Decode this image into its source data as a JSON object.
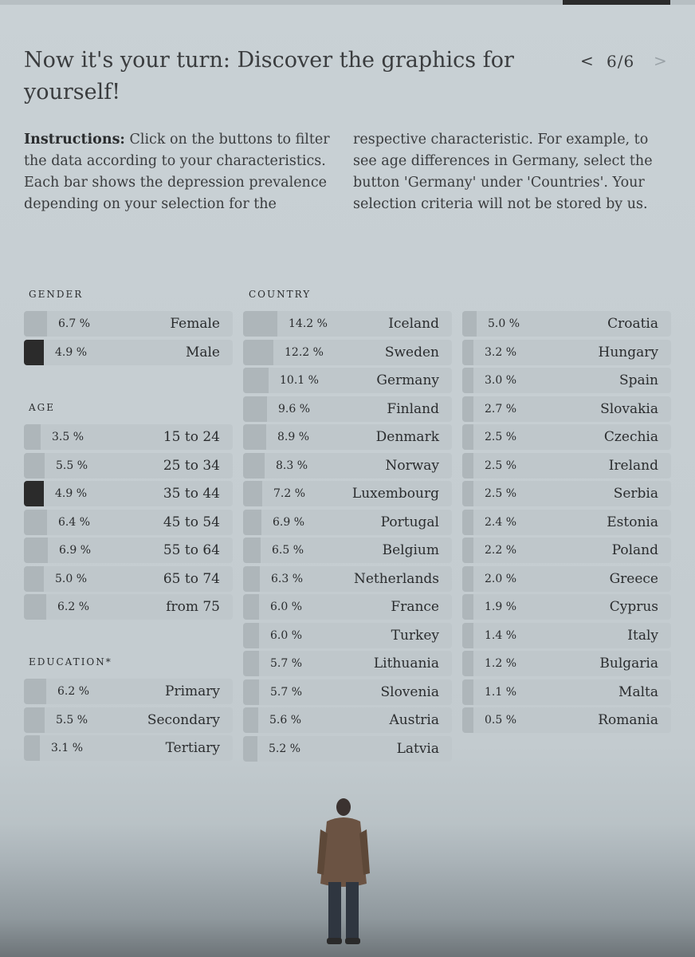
{
  "title": "Now it's your turn: Discover the graphics for yourself!",
  "pager": {
    "prev_icon": "chevron-left-icon",
    "label": "6/6",
    "next_icon": "chevron-right-icon"
  },
  "instructions": {
    "bold": "Instructions:",
    "text": " Click on the buttons to filter the data according to your characteristics. Each bar shows the depression prevalence depend­ing on your selection for the respective char­acteristic. For example, to see age differences in Germany, select the button 'Germany' un­der 'Countries'. Your selection criteria will not be stored by us."
  },
  "sections": {
    "gender": {
      "label": "GENDER",
      "items": [
        {
          "label": "Female",
          "value": "6.7 %",
          "selected": false
        },
        {
          "label": "Male",
          "value": "4.9 %",
          "selected": true
        }
      ]
    },
    "age": {
      "label": "AGE",
      "items": [
        {
          "label": "15 to 24",
          "value": "3.5 %",
          "selected": false
        },
        {
          "label": "25 to 34",
          "value": "5.5 %",
          "selected": false
        },
        {
          "label": "35 to 44",
          "value": "4.9 %",
          "selected": true
        },
        {
          "label": "45 to 54",
          "value": "6.4 %",
          "selected": false
        },
        {
          "label": "55 to 64",
          "value": "6.9 %",
          "selected": false
        },
        {
          "label": "65 to 74",
          "value": "5.0 %",
          "selected": false
        },
        {
          "label": "from 75",
          "value": "6.2 %",
          "selected": false
        }
      ]
    },
    "education": {
      "label": "EDUCATION*",
      "items": [
        {
          "label": "Primary",
          "value": "6.2 %",
          "selected": false
        },
        {
          "label": "Secondary",
          "value": "5.5 %",
          "selected": false
        },
        {
          "label": "Tertiary",
          "value": "3.1 %",
          "selected": false
        }
      ]
    },
    "country": {
      "label": "COUNTRY",
      "items": [
        {
          "label": "Iceland",
          "value": "14.2 %"
        },
        {
          "label": "Sweden",
          "value": "12.2 %"
        },
        {
          "label": "Germany",
          "value": "10.1 %"
        },
        {
          "label": "Finland",
          "value": "9.6 %"
        },
        {
          "label": "Denmark",
          "value": "8.9 %"
        },
        {
          "label": "Norway",
          "value": "8.3 %"
        },
        {
          "label": "Luxembourg",
          "value": "7.2 %"
        },
        {
          "label": "Portugal",
          "value": "6.9 %"
        },
        {
          "label": "Belgium",
          "value": "6.5 %"
        },
        {
          "label": "Netherlands",
          "value": "6.3 %"
        },
        {
          "label": "France",
          "value": "6.0 %"
        },
        {
          "label": "Turkey",
          "value": "6.0 %"
        },
        {
          "label": "Lithuania",
          "value": "5.7 %"
        },
        {
          "label": "Slovenia",
          "value": "5.7 %"
        },
        {
          "label": "Austria",
          "value": "5.6 %"
        },
        {
          "label": "Latvia",
          "value": "5.2 %"
        },
        {
          "label": "Croatia",
          "value": "5.0 %"
        },
        {
          "label": "Hungary",
          "value": "3.2 %"
        },
        {
          "label": "Spain",
          "value": "3.0 %"
        },
        {
          "label": "Slovakia",
          "value": "2.7 %"
        },
        {
          "label": "Czechia",
          "value": "2.5 %"
        },
        {
          "label": "Ireland",
          "value": "2.5 %"
        },
        {
          "label": "Serbia",
          "value": "2.5 %"
        },
        {
          "label": "Estonia",
          "value": "2.4 %"
        },
        {
          "label": "Poland",
          "value": "2.2 %"
        },
        {
          "label": "Greece",
          "value": "2.0 %"
        },
        {
          "label": "Cyprus",
          "value": "1.9 %"
        },
        {
          "label": "Italy",
          "value": "1.4 %"
        },
        {
          "label": "Bulgaria",
          "value": "1.2 %"
        },
        {
          "label": "Malta",
          "value": "1.1 %"
        },
        {
          "label": "Romania",
          "value": "0.5 %"
        }
      ]
    }
  },
  "colors": {
    "selected_bar": "#2b2b2b",
    "bar": "#aeb6ba",
    "button": "#bfc7cb",
    "background": "#c7cfd3"
  }
}
